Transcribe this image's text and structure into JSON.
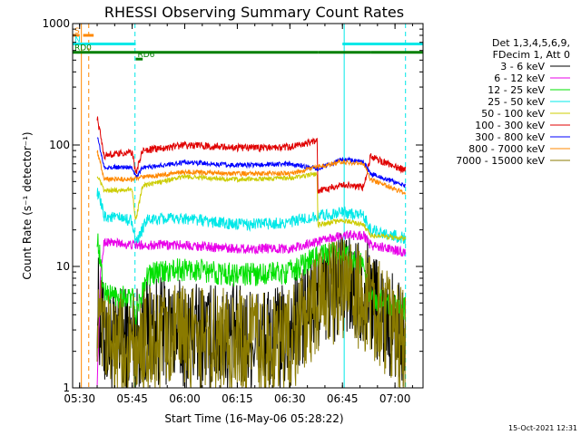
{
  "chart_data": {
    "type": "line",
    "title": "RHESSI Observing Summary Count Rates",
    "xlabel": "Start Time (16-May-06 05:28:22)",
    "ylabel": "Count Rate (s⁻¹ detector⁻¹)",
    "y_scale": "log",
    "ylim": [
      1,
      1000
    ],
    "xlim": [
      "05:28",
      "07:08"
    ],
    "x_ticks": [
      "05:30",
      "05:45",
      "06:00",
      "06:15",
      "06:30",
      "06:45",
      "07:00"
    ],
    "y_ticks": [
      "1",
      "10",
      "100",
      "1000"
    ],
    "legend_header": [
      "Det 1,3,4,5,6,9,",
      "FDecim 1, Att 0"
    ],
    "legend_position": "right",
    "timestamp": "15-Oct-2021 12:31",
    "colors": {
      "black": "#000000",
      "magenta": "#e800e8",
      "green": "#00e000",
      "cyan": "#00e8e8",
      "olive": "#cccc00",
      "red": "#e00000",
      "blue": "#0000ff",
      "orange": "#ff8800",
      "brown": "#8a7a00",
      "flag_green": "#008000",
      "flag_cyan": "#00e8e8",
      "flag_orange": "#ff8800"
    },
    "flags": [
      {
        "label": "S",
        "color": "#ff8800",
        "y": 800,
        "segments": [
          [
            "05:28",
            "05:30"
          ],
          [
            "05:31",
            "05:34"
          ]
        ]
      },
      {
        "label": "N",
        "color": "#00e8e8",
        "y": 680,
        "segments": [
          [
            "05:28",
            "05:46"
          ],
          [
            "06:45",
            "07:08"
          ]
        ]
      },
      {
        "label": "RD6",
        "color": "#008000",
        "y": 510,
        "segments": [
          [
            "05:46",
            "05:48"
          ]
        ]
      },
      {
        "label": "RD0",
        "color": "#008000",
        "y": 580,
        "segments": [
          [
            "05:28",
            "06:38"
          ],
          [
            "06:38",
            "06:53"
          ],
          [
            "06:53",
            "07:08"
          ]
        ]
      }
    ],
    "vlines": [
      {
        "x": "05:30.5",
        "color": "#ff8800",
        "style": "solid"
      },
      {
        "x": "05:32.6",
        "color": "#ff8800",
        "style": "dash"
      },
      {
        "x": "05:45.8",
        "color": "#00e8e8",
        "style": "dash"
      },
      {
        "x": "06:45.5",
        "color": "#00e8e8",
        "style": "solid"
      },
      {
        "x": "07:03.0",
        "color": "#00e8e8",
        "style": "dash"
      }
    ],
    "series": [
      {
        "name": "3 - 6 keV",
        "color": "#000000",
        "noise": 0.45,
        "points": [
          [
            "05:35",
            5
          ],
          [
            "05:37",
            2.5
          ],
          [
            "05:45",
            2.5
          ],
          [
            "05:50",
            3
          ],
          [
            "06:05",
            2.7
          ],
          [
            "06:20",
            2.5
          ],
          [
            "06:29",
            2.5
          ],
          [
            "06:33",
            3.5
          ],
          [
            "06:38",
            5.5
          ],
          [
            "06:45",
            7
          ],
          [
            "06:52",
            6.5
          ],
          [
            "06:58",
            3.5
          ],
          [
            "07:03",
            2.5
          ]
        ]
      },
      {
        "name": "6 - 12 keV",
        "color": "#e800e8",
        "noise": 0.04,
        "points": [
          [
            "05:35",
            1
          ],
          [
            "05:36",
            9
          ],
          [
            "05:37",
            16
          ],
          [
            "05:45",
            15
          ],
          [
            "05:46",
            15
          ],
          [
            "06:00",
            15
          ],
          [
            "06:15",
            14
          ],
          [
            "06:30",
            14
          ],
          [
            "06:38",
            16
          ],
          [
            "06:45",
            18
          ],
          [
            "06:51",
            18
          ],
          [
            "06:53",
            15
          ],
          [
            "06:58",
            14
          ],
          [
            "07:03",
            13
          ]
        ]
      },
      {
        "name": "12 - 25 keV",
        "color": "#00e000",
        "noise": 0.1,
        "points": [
          [
            "05:35",
            18
          ],
          [
            "05:37",
            6
          ],
          [
            "05:45",
            5.5
          ],
          [
            "05:46",
            3.7
          ],
          [
            "05:49",
            8.5
          ],
          [
            "06:00",
            9.5
          ],
          [
            "06:15",
            8.5
          ],
          [
            "06:30",
            9
          ],
          [
            "06:38",
            12
          ],
          [
            "06:45",
            13
          ],
          [
            "06:51",
            10
          ],
          [
            "06:53",
            5.5
          ],
          [
            "07:03",
            4.5
          ]
        ]
      },
      {
        "name": "25 - 50 keV",
        "color": "#00e8e8",
        "noise": 0.05,
        "points": [
          [
            "05:35",
            42
          ],
          [
            "05:37",
            26
          ],
          [
            "05:45",
            24
          ],
          [
            "05:46",
            15
          ],
          [
            "05:49",
            24
          ],
          [
            "06:00",
            25
          ],
          [
            "06:15",
            22
          ],
          [
            "06:30",
            23
          ],
          [
            "06:38",
            26
          ],
          [
            "06:45",
            28
          ],
          [
            "06:51",
            26
          ],
          [
            "06:53",
            20
          ],
          [
            "07:03",
            17
          ]
        ]
      },
      {
        "name": "50 - 100 keV",
        "color": "#cccc00",
        "noise": 0.02,
        "points": [
          [
            "05:35",
            56
          ],
          [
            "05:37",
            42
          ],
          [
            "05:45",
            43
          ],
          [
            "05:46",
            24
          ],
          [
            "05:48",
            46
          ],
          [
            "06:00",
            55
          ],
          [
            "06:15",
            52
          ],
          [
            "06:30",
            53
          ],
          [
            "06:37.8",
            58
          ],
          [
            "06:38",
            22
          ],
          [
            "06:45",
            24
          ],
          [
            "06:51",
            22
          ],
          [
            "06:53",
            18
          ],
          [
            "07:03",
            17
          ]
        ]
      },
      {
        "name": "100 - 300 keV",
        "color": "#e00000",
        "noise": 0.03,
        "points": [
          [
            "05:35",
            170
          ],
          [
            "05:37",
            82
          ],
          [
            "05:45",
            87
          ],
          [
            "05:46",
            58
          ],
          [
            "05:48",
            90
          ],
          [
            "06:00",
            100
          ],
          [
            "06:15",
            95
          ],
          [
            "06:30",
            96
          ],
          [
            "06:37.8",
            108
          ],
          [
            "06:38",
            42
          ],
          [
            "06:45",
            47
          ],
          [
            "06:51",
            45
          ],
          [
            "06:53",
            80
          ],
          [
            "07:03",
            62
          ]
        ]
      },
      {
        "name": "300 - 800 keV",
        "color": "#0000ff",
        "noise": 0.02,
        "points": [
          [
            "05:35",
            120
          ],
          [
            "05:37",
            65
          ],
          [
            "05:45",
            66
          ],
          [
            "05:46",
            55
          ],
          [
            "05:48",
            65
          ],
          [
            "06:00",
            72
          ],
          [
            "06:15",
            68
          ],
          [
            "06:30",
            70
          ],
          [
            "06:38",
            64
          ],
          [
            "06:45",
            76
          ],
          [
            "06:51",
            72
          ],
          [
            "06:53",
            58
          ],
          [
            "07:03",
            46
          ]
        ]
      },
      {
        "name": "800 - 7000 keV",
        "color": "#ff8800",
        "noise": 0.02,
        "points": [
          [
            "05:35",
            90
          ],
          [
            "05:37",
            53
          ],
          [
            "05:45",
            52
          ],
          [
            "05:46",
            53
          ],
          [
            "05:48",
            54
          ],
          [
            "06:00",
            60
          ],
          [
            "06:15",
            58
          ],
          [
            "06:30",
            58
          ],
          [
            "06:38",
            66
          ],
          [
            "06:45",
            73
          ],
          [
            "06:51",
            70
          ],
          [
            "06:53",
            52
          ],
          [
            "07:03",
            40
          ]
        ]
      },
      {
        "name": "7000 - 15000 keV",
        "color": "#8a7a00",
        "noise": 0.45,
        "points": [
          [
            "05:35",
            4
          ],
          [
            "05:37",
            2.2
          ],
          [
            "05:45",
            2.2
          ],
          [
            "05:50",
            2.5
          ],
          [
            "06:05",
            2.5
          ],
          [
            "06:20",
            2.2
          ],
          [
            "06:29",
            2.2
          ],
          [
            "06:33",
            3.2
          ],
          [
            "06:38",
            5
          ],
          [
            "06:45",
            6.5
          ],
          [
            "06:52",
            5.5
          ],
          [
            "06:58",
            3.2
          ],
          [
            "07:03",
            2.2
          ]
        ]
      }
    ]
  }
}
